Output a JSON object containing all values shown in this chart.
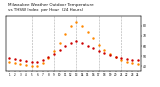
{
  "title": "Milwaukee Weather Outdoor Temperature vs THSW Index per Hour (24 Hours)",
  "hours": [
    1,
    2,
    3,
    4,
    5,
    6,
    7,
    8,
    9,
    10,
    11,
    12,
    13,
    14,
    15,
    16,
    17,
    18,
    19,
    20,
    21,
    22,
    23,
    24
  ],
  "temp": [
    48,
    47,
    46,
    45,
    44,
    44,
    46,
    49,
    52,
    56,
    60,
    63,
    65,
    63,
    60,
    58,
    55,
    53,
    51,
    49,
    48,
    47,
    46,
    46
  ],
  "thsw": [
    44,
    43,
    42,
    41,
    40,
    40,
    43,
    48,
    55,
    63,
    72,
    80,
    84,
    80,
    74,
    68,
    61,
    56,
    52,
    49,
    46,
    44,
    43,
    42
  ],
  "temp_color": "#cc0000",
  "thsw_color": "#ff8800",
  "bg_color": "#ffffff",
  "grid_color": "#aaaaaa",
  "vlines": [
    5,
    9,
    13,
    17,
    21
  ],
  "ylim": [
    35,
    90
  ],
  "yticks_right": [
    40,
    50,
    60,
    70,
    80
  ],
  "title_fontsize": 3.0
}
